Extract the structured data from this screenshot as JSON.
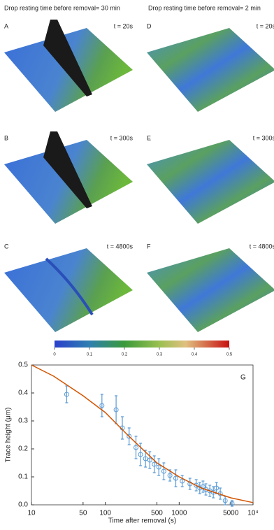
{
  "headings": [
    "Drop resting time before removal= 30 min",
    "Drop resting time before removal= 2 min"
  ],
  "panels": [
    {
      "label": "A",
      "time": "t = 20s"
    },
    {
      "label": "B",
      "time": "t = 300s"
    },
    {
      "label": "C",
      "time": "t = 4800s"
    },
    {
      "label": "D",
      "time": "t = 20s"
    },
    {
      "label": "E",
      "time": "t = 300s"
    },
    {
      "label": "F",
      "time": "t = 4800s"
    }
  ],
  "colorbar": {
    "lim": [
      0,
      0.5
    ],
    "ticks": [
      0,
      0.1,
      0.2,
      0.3,
      0.4,
      0.5
    ]
  },
  "chart_data": {
    "type": "scatter",
    "panel_label": "G",
    "x_label": "Time after removal (s)",
    "y_label": "Trace height (μm)",
    "log_x": true,
    "xlim": [
      10,
      10000
    ],
    "xticks": [
      10,
      50,
      100,
      500,
      1000,
      5000,
      {
        "value": 10000,
        "label": "10⁴"
      }
    ],
    "ylim": [
      0,
      0.5
    ],
    "yticks": [
      {
        "value": 0,
        "label": "0.0"
      },
      0.1,
      0.2,
      0.3,
      0.4,
      0.5
    ],
    "series": [
      {
        "type": "scatter",
        "color": "#5b9bd5",
        "x": [
          30,
          90,
          140,
          170,
          210,
          260,
          300,
          350,
          400,
          460,
          530,
          620,
          750,
          900,
          1100,
          1400,
          1700,
          1900,
          2100,
          2300,
          2600,
          2900,
          3200,
          3600,
          4200,
          5200
        ],
        "values": [
          0.395,
          0.355,
          0.34,
          0.275,
          0.245,
          0.205,
          0.18,
          0.165,
          0.16,
          0.145,
          0.135,
          0.12,
          0.105,
          0.095,
          0.085,
          0.075,
          0.07,
          0.06,
          0.065,
          0.055,
          0.05,
          0.045,
          0.06,
          0.04,
          0.015,
          0.005
        ],
        "errors": [
          0.03,
          0.04,
          0.05,
          0.04,
          0.03,
          0.04,
          0.04,
          0.03,
          0.03,
          0.03,
          0.03,
          0.03,
          0.02,
          0.03,
          0.02,
          0.02,
          0.02,
          0.02,
          0.02,
          0.02,
          0.02,
          0.02,
          0.02,
          0.02,
          0.015,
          0.01
        ]
      },
      {
        "type": "line",
        "color": "#d35400",
        "x": [
          10,
          20,
          50,
          100,
          200,
          500,
          1000,
          2000,
          5000,
          10000
        ],
        "values": [
          0.5,
          0.46,
          0.39,
          0.33,
          0.25,
          0.15,
          0.1,
          0.06,
          0.025,
          0.008
        ]
      }
    ]
  }
}
